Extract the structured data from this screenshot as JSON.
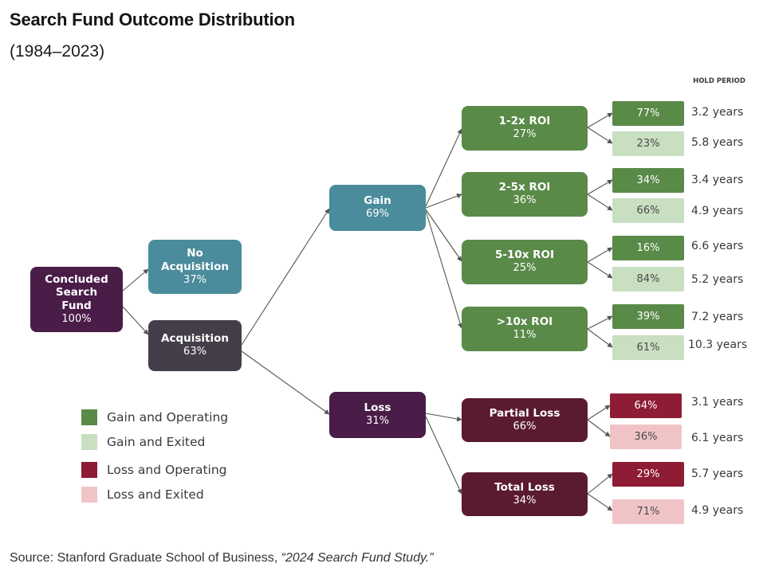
{
  "title": "Search Fund Outcome Distribution",
  "subtitle": "(1984–2023)",
  "hold_period_header": "HOLD PERIOD",
  "colors": {
    "root": "#4a1c48",
    "no_acquisition": "#4a8b9c",
    "acquisition": "#433e4a",
    "gain": "#4a8b9c",
    "loss": "#4a1c48",
    "roi": "#5a8a48",
    "loss_node": "#5a1a30",
    "gain_operating": "#5a8a48",
    "gain_exited": "#c8dfc2",
    "loss_operating": "#8e1c34",
    "loss_exited": "#f0c4c6",
    "connector": "#555555"
  },
  "nodes": {
    "root": {
      "label": "Concluded Search Fund",
      "pct": "100%"
    },
    "no_acquisition": {
      "label": "No Acquisition",
      "pct": "37%"
    },
    "acquisition": {
      "label": "Acquisition",
      "pct": "63%"
    },
    "gain": {
      "label": "Gain",
      "pct": "69%"
    },
    "loss": {
      "label": "Loss",
      "pct": "31%"
    },
    "roi_1_2": {
      "label": "1-2x ROI",
      "pct": "27%"
    },
    "roi_2_5": {
      "label": "2-5x ROI",
      "pct": "36%"
    },
    "roi_5_10": {
      "label": "5-10x ROI",
      "pct": "25%"
    },
    "roi_10": {
      "label": ">10x ROI",
      "pct": "11%"
    },
    "partial_loss": {
      "label": "Partial Loss",
      "pct": "66%"
    },
    "total_loss": {
      "label": "Total Loss",
      "pct": "34%"
    }
  },
  "outcomes": {
    "roi_1_2": {
      "operating": {
        "pct": "77%",
        "years": "3.2 years"
      },
      "exited": {
        "pct": "23%",
        "years": "5.8 years"
      }
    },
    "roi_2_5": {
      "operating": {
        "pct": "34%",
        "years": "3.4 years"
      },
      "exited": {
        "pct": "66%",
        "years": "4.9 years"
      }
    },
    "roi_5_10": {
      "operating": {
        "pct": "16%",
        "years": "6.6 years"
      },
      "exited": {
        "pct": "84%",
        "years": "5.2 years"
      }
    },
    "roi_10": {
      "operating": {
        "pct": "39%",
        "years": "7.2 years"
      },
      "exited": {
        "pct": "61%",
        "years": "10.3 years"
      }
    },
    "partial_loss": {
      "operating": {
        "pct": "64%",
        "years": "3.1 years"
      },
      "exited": {
        "pct": "36%",
        "years": "6.1 years"
      }
    },
    "total_loss": {
      "operating": {
        "pct": "29%",
        "years": "5.7 years"
      },
      "exited": {
        "pct": "71%",
        "years": "4.9 years"
      }
    }
  },
  "legend": [
    {
      "label": "Gain and Operating",
      "color": "#5a8a48"
    },
    {
      "label": "Gain and Exited",
      "color": "#c8dfc2"
    },
    {
      "label": "Loss and Operating",
      "color": "#8e1c34"
    },
    {
      "label": "Loss and Exited",
      "color": "#f0c4c6"
    }
  ],
  "source": {
    "prefix": "Source: Stanford Graduate School of Business, ",
    "citation": "“2024 Search Fund Study.”"
  }
}
